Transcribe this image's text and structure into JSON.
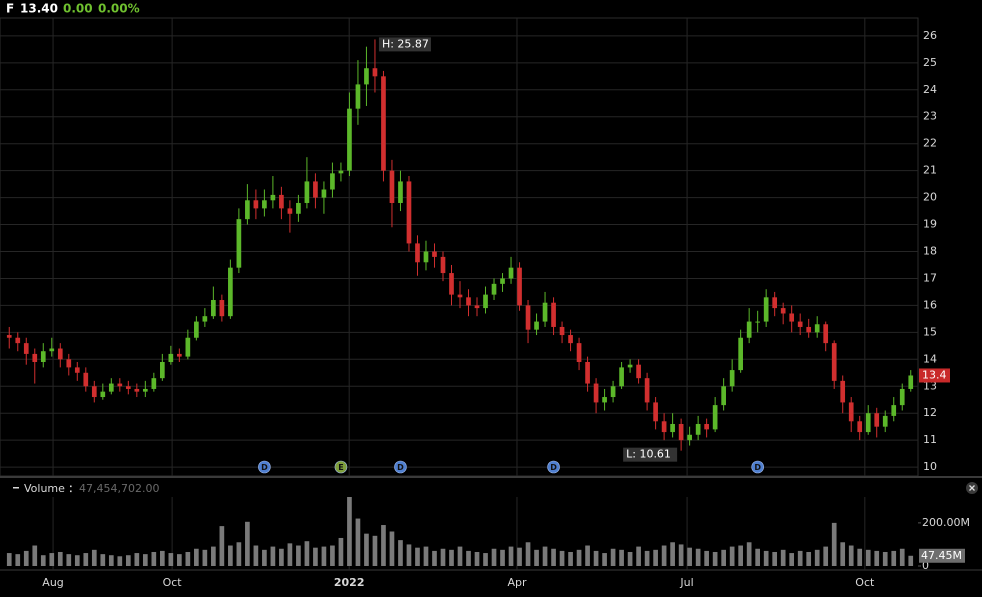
{
  "chart_data": {
    "type": "candlestick",
    "header": {
      "symbol": "F",
      "price": "13.40",
      "change": "0.00",
      "change_pct": "0.00%"
    },
    "open": [
      14.9,
      14.8,
      14.6,
      14.2,
      13.9,
      14.3,
      14.4,
      14.0,
      13.7,
      13.5,
      13.0,
      12.6,
      12.8,
      13.1,
      13.0,
      12.9,
      12.8,
      12.9,
      13.3,
      13.9,
      14.2,
      14.1,
      14.8,
      15.4,
      15.6,
      16.2,
      15.6,
      17.4,
      19.2,
      19.9,
      19.6,
      19.9,
      20.1,
      19.6,
      19.4,
      19.8,
      20.6,
      20.0,
      20.3,
      20.9,
      21.0,
      23.3,
      24.2,
      24.8,
      24.5,
      21.0,
      19.8,
      20.6,
      18.3,
      17.6,
      18.0,
      17.8,
      17.2,
      16.4,
      16.3,
      16.0,
      15.9,
      16.4,
      16.8,
      17.0,
      17.4,
      16.0,
      15.1,
      15.4,
      16.1,
      15.2,
      14.9,
      14.6,
      13.9,
      13.1,
      12.4,
      12.6,
      13.0,
      13.7,
      13.8,
      13.3,
      12.4,
      11.7,
      11.3,
      11.6,
      11.0,
      11.2,
      11.6,
      11.4,
      12.3,
      13.0,
      13.6,
      14.8,
      15.4,
      15.4,
      16.3,
      15.9,
      15.7,
      15.4,
      15.2,
      15.0,
      15.3,
      14.6,
      13.2,
      12.4,
      11.7,
      11.3,
      12.0,
      11.5,
      11.9,
      12.3,
      12.9
    ],
    "high": [
      15.2,
      15.0,
      14.8,
      14.4,
      14.6,
      14.8,
      14.6,
      14.2,
      13.9,
      13.7,
      13.2,
      13.1,
      13.3,
      13.3,
      13.2,
      13.1,
      13.2,
      13.5,
      14.2,
      14.5,
      14.4,
      15.1,
      15.6,
      15.9,
      16.7,
      16.4,
      17.7,
      19.6,
      20.5,
      20.3,
      20.3,
      20.8,
      20.4,
      19.9,
      20.1,
      21.5,
      20.9,
      20.6,
      21.3,
      21.3,
      23.9,
      25.1,
      25.6,
      25.87,
      24.7,
      21.4,
      21.0,
      20.8,
      18.6,
      18.4,
      18.3,
      18.0,
      17.5,
      16.9,
      16.6,
      16.3,
      16.7,
      17.0,
      17.2,
      17.8,
      17.6,
      16.2,
      15.7,
      16.5,
      16.3,
      15.4,
      15.1,
      14.8,
      14.1,
      13.3,
      12.9,
      13.2,
      13.9,
      14.0,
      14.0,
      13.5,
      12.6,
      12.0,
      12.0,
      11.8,
      11.5,
      11.9,
      11.8,
      12.6,
      13.3,
      14.0,
      15.1,
      15.9,
      15.8,
      16.6,
      16.5,
      16.1,
      16.0,
      15.7,
      15.5,
      15.6,
      15.4,
      14.7,
      13.4,
      12.6,
      11.9,
      12.3,
      12.2,
      12.1,
      12.6,
      13.1,
      13.6
    ],
    "low": [
      14.4,
      14.3,
      13.8,
      13.1,
      13.7,
      14.1,
      13.7,
      13.4,
      13.2,
      12.8,
      12.4,
      12.5,
      12.7,
      12.8,
      12.7,
      12.6,
      12.6,
      12.8,
      13.2,
      13.8,
      13.9,
      14.0,
      14.7,
      15.2,
      15.5,
      15.4,
      15.5,
      17.2,
      19.0,
      19.2,
      19.3,
      19.6,
      19.2,
      18.7,
      19.1,
      19.6,
      19.6,
      19.4,
      20.0,
      20.6,
      20.8,
      22.7,
      23.4,
      23.9,
      20.6,
      18.9,
      19.5,
      18.0,
      17.1,
      17.3,
      17.4,
      16.9,
      16.0,
      15.9,
      15.6,
      15.6,
      15.7,
      16.2,
      16.5,
      16.8,
      15.8,
      14.6,
      14.9,
      15.2,
      14.9,
      14.6,
      14.3,
      13.6,
      12.8,
      12.0,
      12.1,
      12.4,
      12.9,
      13.5,
      13.1,
      12.1,
      11.4,
      11.0,
      11.1,
      10.61,
      10.8,
      11.0,
      11.1,
      11.3,
      12.1,
      12.8,
      13.5,
      14.6,
      15.0,
      15.2,
      15.6,
      15.3,
      15.0,
      14.9,
      14.8,
      14.8,
      14.3,
      12.9,
      12.0,
      11.3,
      11.0,
      11.2,
      11.1,
      11.3,
      11.7,
      12.1,
      12.8
    ],
    "close": [
      14.8,
      14.6,
      14.2,
      13.9,
      14.3,
      14.4,
      14.0,
      13.7,
      13.5,
      13.0,
      12.6,
      12.8,
      13.1,
      13.0,
      12.9,
      12.8,
      12.9,
      13.3,
      13.9,
      14.2,
      14.1,
      14.8,
      15.4,
      15.6,
      16.2,
      15.6,
      17.4,
      19.2,
      19.9,
      19.6,
      19.9,
      20.1,
      19.6,
      19.4,
      19.8,
      20.6,
      20.0,
      20.3,
      20.9,
      21.0,
      23.3,
      24.2,
      24.8,
      24.5,
      21.0,
      19.8,
      20.6,
      18.3,
      17.6,
      18.0,
      17.8,
      17.2,
      16.4,
      16.3,
      16.0,
      15.9,
      16.4,
      16.8,
      17.0,
      17.4,
      16.0,
      15.1,
      15.4,
      16.1,
      15.2,
      14.9,
      14.6,
      13.9,
      13.1,
      12.4,
      12.6,
      13.0,
      13.7,
      13.8,
      13.3,
      12.4,
      11.7,
      11.3,
      11.6,
      11.0,
      11.2,
      11.6,
      11.4,
      12.3,
      13.0,
      13.6,
      14.8,
      15.4,
      15.4,
      16.3,
      15.9,
      15.7,
      15.4,
      15.2,
      15.0,
      15.3,
      14.6,
      13.2,
      12.4,
      11.7,
      11.3,
      12.0,
      11.5,
      11.9,
      12.3,
      12.9,
      13.4
    ],
    "up_color": "#5cb82a",
    "down_color": "#d12f2f",
    "last_price_label": "13.4",
    "last_price_color": "#c92a2a",
    "high_label": "H: 25.87",
    "low_label": "L: 10.61",
    "xlim": [
      -0.5,
      106.5
    ],
    "xticks": [
      {
        "value": 5.15,
        "label": "Aug"
      },
      {
        "value": 19.15,
        "label": "Oct"
      },
      {
        "value": 39.97,
        "label": "2022"
      },
      {
        "value": 59.7,
        "label": "Apr"
      },
      {
        "value": 79.7,
        "label": "Jul"
      },
      {
        "value": 100.6,
        "label": "Oct"
      }
    ],
    "ylim": [
      9.67,
      26.33
    ],
    "yticks": [
      10,
      11,
      12,
      13,
      14,
      15,
      16,
      17,
      18,
      19,
      20,
      21,
      22,
      23,
      24,
      25,
      26
    ],
    "grid": true,
    "events": [
      {
        "label": "D",
        "index": 30,
        "color": "#4f7fd0"
      },
      {
        "label": "E",
        "index": 39,
        "color": "#7f9f3c"
      },
      {
        "label": "D",
        "index": 46,
        "color": "#4f7fd0"
      },
      {
        "label": "D",
        "index": 64,
        "color": "#4f7fd0"
      },
      {
        "label": "D",
        "index": 88,
        "color": "#4f7fd0"
      }
    ],
    "volume": {
      "name": "Volume",
      "color": "#7a7a7a",
      "readout_label": "47,454,702.00",
      "last_value_label": "47.45M",
      "values": [
        60000000,
        55000000,
        70000000,
        95000000,
        50000000,
        60000000,
        65000000,
        55000000,
        50000000,
        60000000,
        75000000,
        55000000,
        50000000,
        45000000,
        50000000,
        60000000,
        55000000,
        65000000,
        70000000,
        60000000,
        55000000,
        65000000,
        80000000,
        75000000,
        90000000,
        185000000,
        95000000,
        110000000,
        205000000,
        95000000,
        75000000,
        90000000,
        80000000,
        105000000,
        95000000,
        115000000,
        85000000,
        90000000,
        95000000,
        130000000,
        320000000,
        220000000,
        150000000,
        140000000,
        190000000,
        160000000,
        120000000,
        100000000,
        85000000,
        90000000,
        70000000,
        80000000,
        75000000,
        90000000,
        70000000,
        65000000,
        60000000,
        80000000,
        75000000,
        90000000,
        85000000,
        110000000,
        75000000,
        90000000,
        80000000,
        70000000,
        65000000,
        75000000,
        95000000,
        70000000,
        60000000,
        80000000,
        75000000,
        65000000,
        90000000,
        70000000,
        75000000,
        95000000,
        110000000,
        100000000,
        85000000,
        80000000,
        70000000,
        65000000,
        75000000,
        90000000,
        95000000,
        110000000,
        80000000,
        70000000,
        65000000,
        75000000,
        60000000,
        70000000,
        65000000,
        75000000,
        90000000,
        200000000,
        110000000,
        95000000,
        80000000,
        75000000,
        70000000,
        65000000,
        70000000,
        80000000,
        47454702
      ],
      "ylim": [
        0,
        320000000
      ],
      "yticks": [
        0,
        {
          "value": 200000000,
          "label": "200.00M"
        }
      ]
    }
  }
}
